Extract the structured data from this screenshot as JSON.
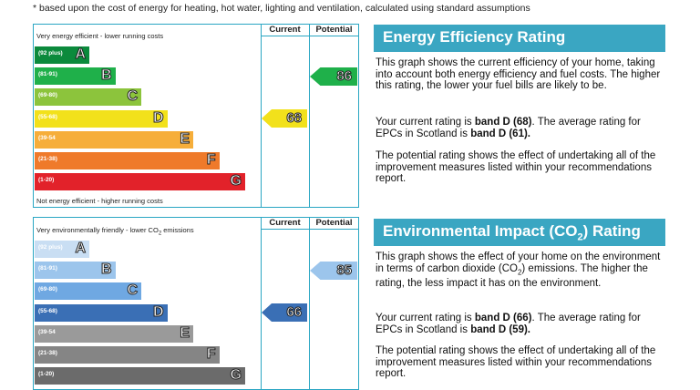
{
  "footnote": "* based upon the cost of energy for heating, hot water, lighting and ventilation, calculated using standard assumptions",
  "energy": {
    "col_current": "Current",
    "col_potential": "Potential",
    "top_label": "Very energy efficient - lower running costs",
    "bottom_label": "Not energy efficient - higher running costs",
    "bands": [
      {
        "range": "(92 plus)",
        "letter": "A",
        "color": "#0b8a3c"
      },
      {
        "range": "(81-91)",
        "letter": "B",
        "color": "#1fb04a"
      },
      {
        "range": "(69-80)",
        "letter": "C",
        "color": "#8cc43c"
      },
      {
        "range": "(55-68)",
        "letter": "D",
        "color": "#f2e11b"
      },
      {
        "range": "(39-54",
        "letter": "E",
        "color": "#f6ae3a"
      },
      {
        "range": "(21-38)",
        "letter": "F",
        "color": "#ef7a2a"
      },
      {
        "range": "(1-20)",
        "letter": "G",
        "color": "#e2222a"
      }
    ],
    "current": {
      "value": "68",
      "band": "D",
      "color": "#f2e11b"
    },
    "potential": {
      "value": "86",
      "band": "B",
      "color": "#1fb04a"
    },
    "heading": "Energy Efficiency Rating",
    "p1": "This graph shows the current efficiency of your home, taking into account both energy efficiency and fuel costs. The higher this rating, the lower your fuel bills are likely to be.",
    "p2_pre": "Your current rating is ",
    "p2_b1": "band D (68)",
    "p2_mid": ". The average rating for EPCs in Scotland is ",
    "p2_b2": "band D (61).",
    "p3": "The potential rating shows the effect of undertaking all of the improvement measures listed within your recommendations report."
  },
  "environment": {
    "col_current": "Current",
    "col_potential": "Potential",
    "top_label": "Very environmentally friendly - lower CO",
    "top_label_sub": "2",
    "top_label_end": " emissions",
    "bands": [
      {
        "range": "(92 plus)",
        "letter": "A",
        "color": "#c9def3"
      },
      {
        "range": "(81-91)",
        "letter": "B",
        "color": "#9cc5ec"
      },
      {
        "range": "(69-80)",
        "letter": "C",
        "color": "#6fa8e2"
      },
      {
        "range": "(55-68)",
        "letter": "D",
        "color": "#3a6fb5"
      },
      {
        "range": "(39-54",
        "letter": "E",
        "color": "#9a9a9a"
      },
      {
        "range": "(21-38)",
        "letter": "F",
        "color": "#858585"
      },
      {
        "range": "(1-20)",
        "letter": "G",
        "color": "#6b6b6b"
      }
    ],
    "current": {
      "value": "66",
      "band": "D",
      "color": "#3a6fb5"
    },
    "potential": {
      "value": "85",
      "band": "B",
      "color": "#9cc5ec"
    },
    "heading": "Environmental Impact (CO",
    "heading_sub": "2",
    "heading_end": ") Rating",
    "p1_a": "This graph shows the effect of your home on the environment in terms of carbon dioxide (CO",
    "p1_sub": "2",
    "p1_b": ") emissions. The higher the rating, the less impact it has on the environment.",
    "p2_pre": "Your current rating is ",
    "p2_b1": "band D (66)",
    "p2_mid": ". The average rating for EPCs in Scotland is ",
    "p2_b2": "band D (59).",
    "p3": "The potential rating shows the effect of undertaking all of the improvement measures listed within your recommendations report."
  }
}
